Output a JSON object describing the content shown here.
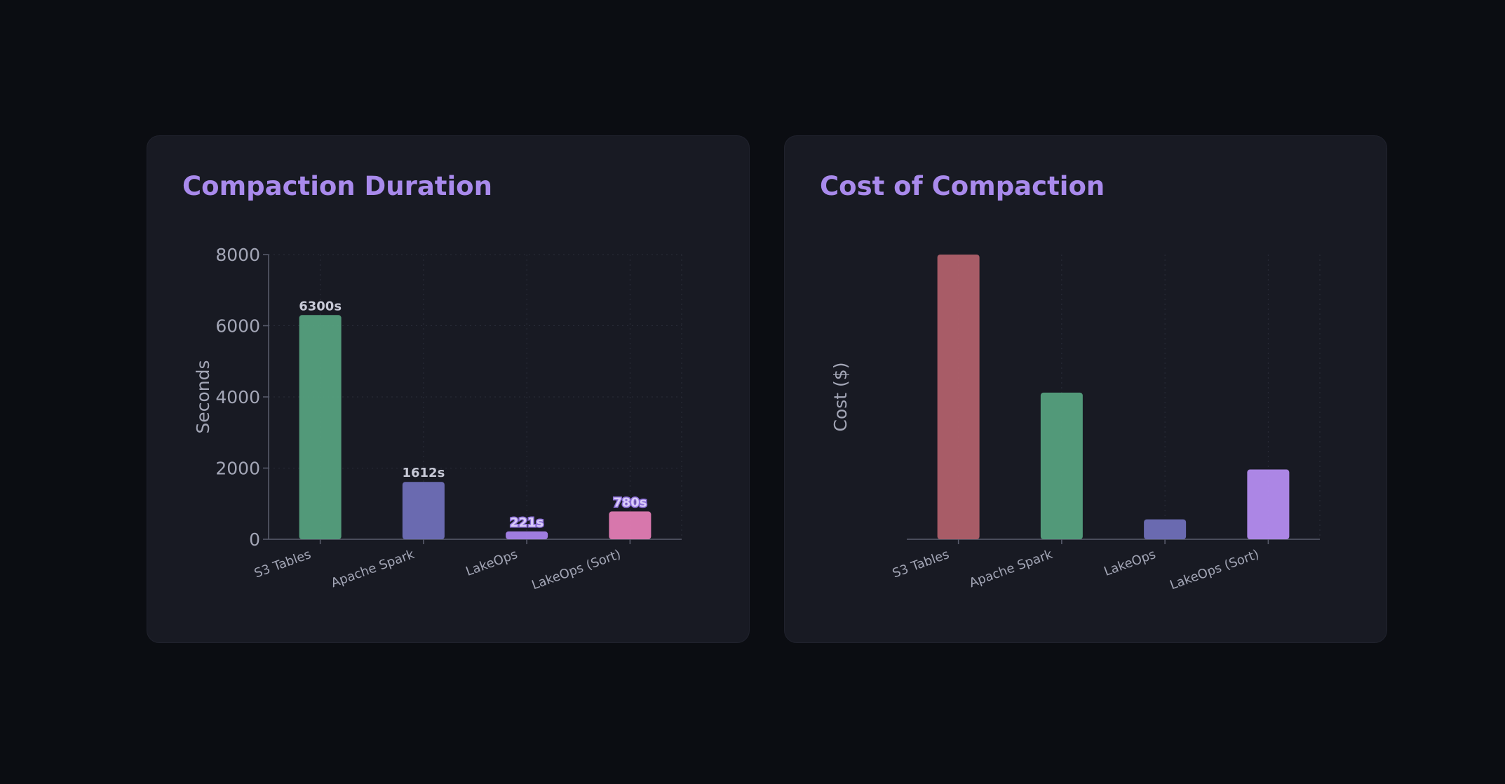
{
  "colors": {
    "s3_tables": "#55a07e",
    "apache_spark": "#6f6fb8",
    "lakeops": "#a683ea",
    "lakeops_sort": "#e17cb4",
    "s3_tables_cost": "#b0606b",
    "apache_spark_cost": "#55a07e",
    "lakeops_cost": "#6f6fb8",
    "lakeops_sort_cost": "#b48cf0",
    "axis": "#5b5e6e",
    "grid": "#2a2d3a",
    "title": "#a98aec"
  },
  "chart_data": [
    {
      "type": "bar",
      "title": "Compaction Duration",
      "ylabel": "Seconds",
      "xlabel": "",
      "ylim": [
        0,
        8000
      ],
      "yticks": [
        0,
        2000,
        4000,
        6000,
        8000
      ],
      "categories": [
        "S3 Tables",
        "Apache Spark",
        "LakeOps",
        "LakeOps (Sort)"
      ],
      "values": [
        6300,
        1612,
        221,
        780
      ],
      "data_labels": [
        "6300s",
        "1612s",
        "221s",
        "780s"
      ],
      "bar_colors": [
        "#55a07e",
        "#6f6fb8",
        "#a683ea",
        "#e17cb4"
      ],
      "grid": true,
      "legend": "none"
    },
    {
      "type": "bar",
      "title": "Cost of Compaction",
      "ylabel": "Cost ($)",
      "xlabel": "",
      "ylim": [
        0,
        1
      ],
      "yticks": [],
      "categories": [
        "S3 Tables",
        "Apache Spark",
        "LakeOps",
        "LakeOps (Sort)"
      ],
      "values": [
        1.0,
        0.515,
        0.07,
        0.245
      ],
      "data_labels": [],
      "bar_colors": [
        "#b0606b",
        "#55a07e",
        "#6f6fb8",
        "#b48cf0"
      ],
      "grid": true,
      "legend": "none"
    }
  ]
}
